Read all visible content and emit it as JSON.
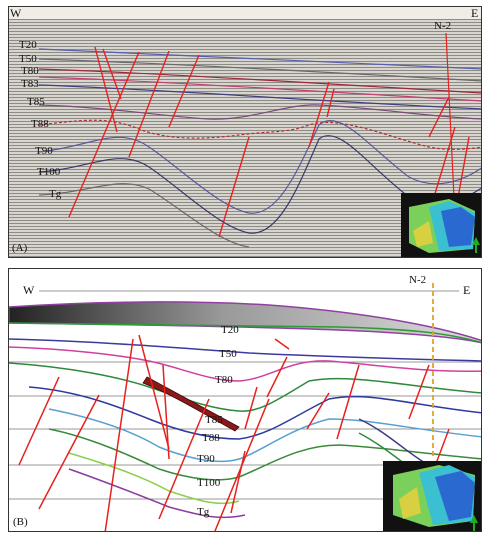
{
  "directions": {
    "west": "W",
    "east": "E"
  },
  "well": "N-2",
  "panel_a": {
    "label": "(A)",
    "horizons": [
      "T20",
      "T50",
      "T80",
      "T83",
      "T85",
      "T88",
      "T90",
      "T100",
      "Tg"
    ]
  },
  "panel_b": {
    "label": "(B)",
    "horizons": [
      "T20",
      "T50",
      "T80",
      "T85",
      "T88",
      "T90",
      "T100",
      "Tg"
    ]
  },
  "colors": {
    "fault": "#e8201e",
    "well_a": "#e8201e",
    "well_b": "#e8a020",
    "seismic_bg": "#d9d6cf"
  },
  "icons": {
    "inset_map": "map-inset",
    "north_arrow": "north-arrow-icon"
  }
}
